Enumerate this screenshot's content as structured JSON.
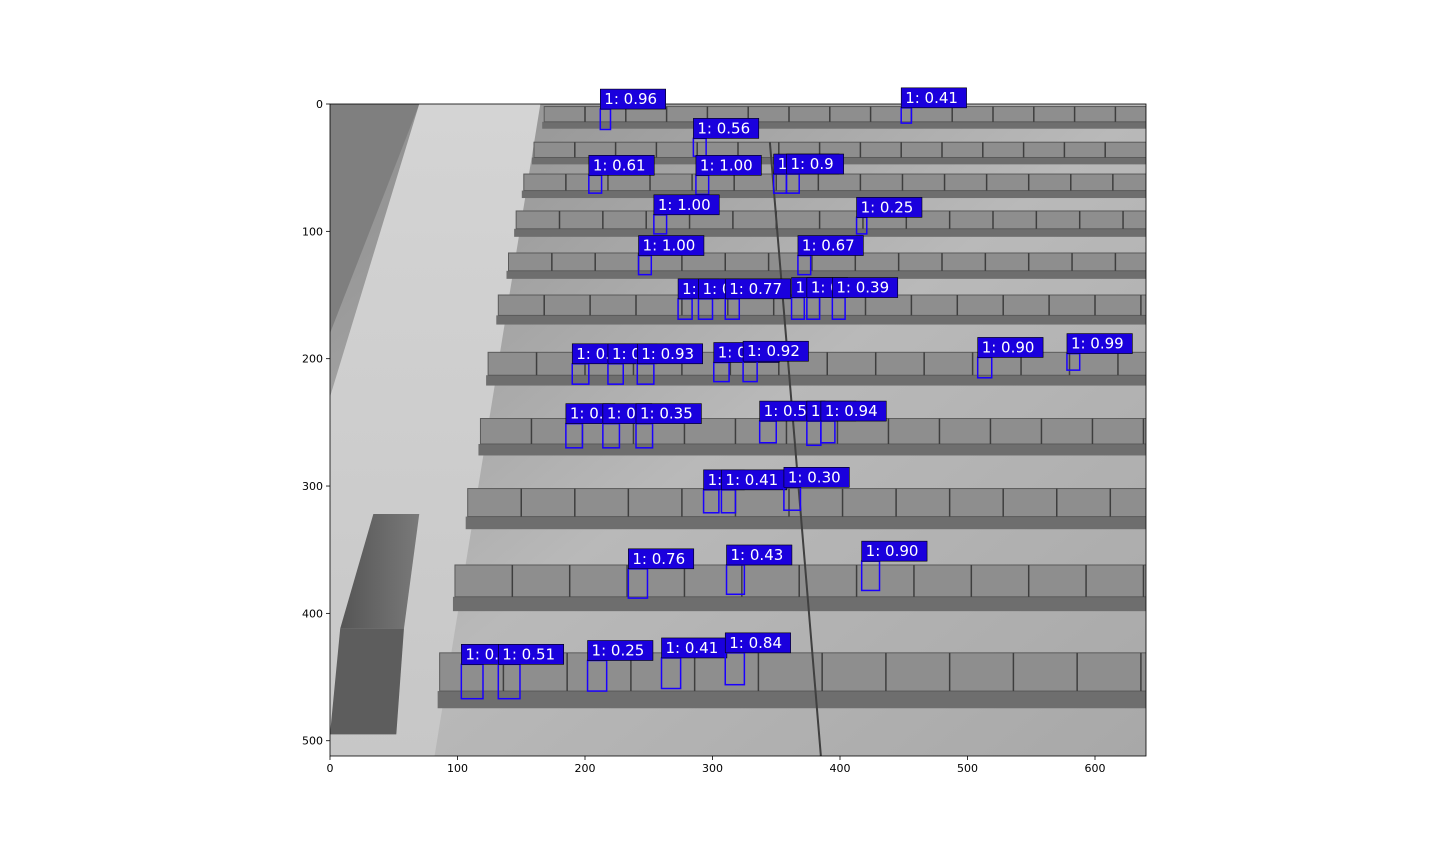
{
  "chart_data": {
    "type": "detection-overlay",
    "title": "",
    "xlabel": "",
    "ylabel": "",
    "xlim": [
      0,
      640
    ],
    "ylim": [
      512,
      0
    ],
    "xticks": [
      0,
      100,
      200,
      300,
      400,
      500,
      600
    ],
    "yticks": [
      0,
      100,
      200,
      300,
      400,
      500
    ],
    "xtick_labels": [
      "0",
      "100",
      "200",
      "300",
      "400",
      "500",
      "600"
    ],
    "ytick_labels": [
      "0",
      "100",
      "200",
      "300",
      "400",
      "500"
    ],
    "box_color": "#1a00ff",
    "label_bg": "#1a00dd",
    "background": "grayscale thermal aerial image of solar panel rows",
    "detections": [
      {
        "label": "1: 0.96",
        "x": 212,
        "y": 4,
        "w": 8,
        "h": 16
      },
      {
        "label": "1: 0.41",
        "x": 448,
        "y": 3,
        "w": 8,
        "h": 12
      },
      {
        "label": "1: 0.56",
        "x": 285,
        "y": 27,
        "w": 10,
        "h": 14
      },
      {
        "label": "1: 0.61",
        "x": 203,
        "y": 56,
        "w": 10,
        "h": 14
      },
      {
        "label": "1: 1.00",
        "x": 287,
        "y": 56,
        "w": 10,
        "h": 15
      },
      {
        "label": "1: 0.76",
        "x": 348,
        "y": 55,
        "w": 10,
        "h": 15
      },
      {
        "label": "1: 0.9",
        "x": 358,
        "y": 55,
        "w": 10,
        "h": 15
      },
      {
        "label": "1: 1.00",
        "x": 254,
        "y": 87,
        "w": 10,
        "h": 15
      },
      {
        "label": "1: 0.25",
        "x": 413,
        "y": 89,
        "w": 8,
        "h": 13
      },
      {
        "label": "1: 1.00",
        "x": 242,
        "y": 119,
        "w": 10,
        "h": 15
      },
      {
        "label": "1: 0.67",
        "x": 367,
        "y": 119,
        "w": 10,
        "h": 15
      },
      {
        "label": "1: 0",
        "x": 273,
        "y": 153,
        "w": 11,
        "h": 16
      },
      {
        "label": "1: 0",
        "x": 289,
        "y": 153,
        "w": 11,
        "h": 16
      },
      {
        "label": "1: 0.77",
        "x": 310,
        "y": 153,
        "w": 11,
        "h": 16
      },
      {
        "label": "1: 0",
        "x": 362,
        "y": 152,
        "w": 10,
        "h": 17
      },
      {
        "label": "1: 0",
        "x": 374,
        "y": 152,
        "w": 10,
        "h": 17
      },
      {
        "label": "1: 0.39",
        "x": 394,
        "y": 152,
        "w": 10,
        "h": 17
      },
      {
        "label": "1: 0.93",
        "x": 190,
        "y": 204,
        "w": 13,
        "h": 16
      },
      {
        "label": "1: 0.",
        "x": 218,
        "y": 204,
        "w": 12,
        "h": 16
      },
      {
        "label": "1: 0.93",
        "x": 241,
        "y": 204,
        "w": 13,
        "h": 16
      },
      {
        "label": "1: 0.26",
        "x": 301,
        "y": 203,
        "w": 12,
        "h": 15
      },
      {
        "label": "1: 0.92",
        "x": 324,
        "y": 202,
        "w": 11,
        "h": 16
      },
      {
        "label": "1: 0.90",
        "x": 508,
        "y": 199,
        "w": 11,
        "h": 16
      },
      {
        "label": "1: 0.99",
        "x": 578,
        "y": 196,
        "w": 10,
        "h": 13
      },
      {
        "label": "1: 0.",
        "x": 185,
        "y": 251,
        "w": 13,
        "h": 19
      },
      {
        "label": "1: 0.",
        "x": 214,
        "y": 251,
        "w": 13,
        "h": 19
      },
      {
        "label": "1: 0.35",
        "x": 240,
        "y": 251,
        "w": 13,
        "h": 19
      },
      {
        "label": "1: 0.54",
        "x": 337,
        "y": 249,
        "w": 13,
        "h": 17
      },
      {
        "label": "1: 0.",
        "x": 374,
        "y": 249,
        "w": 11,
        "h": 19
      },
      {
        "label": "1: 0.94",
        "x": 385,
        "y": 249,
        "w": 11,
        "h": 17
      },
      {
        "label": "1: 0",
        "x": 293,
        "y": 303,
        "w": 12,
        "h": 18
      },
      {
        "label": "1: 0.41",
        "x": 307,
        "y": 303,
        "w": 11,
        "h": 18
      },
      {
        "label": "1: 0.30",
        "x": 356,
        "y": 301,
        "w": 13,
        "h": 18
      },
      {
        "label": "1: 0.76",
        "x": 234,
        "y": 365,
        "w": 15,
        "h": 23
      },
      {
        "label": "1: 0.43",
        "x": 311,
        "y": 362,
        "w": 14,
        "h": 23
      },
      {
        "label": "1: 0.90",
        "x": 417,
        "y": 359,
        "w": 14,
        "h": 23
      },
      {
        "label": "1: 0.",
        "x": 103,
        "y": 440,
        "w": 17,
        "h": 27
      },
      {
        "label": "1: 0.51",
        "x": 132,
        "y": 440,
        "w": 17,
        "h": 27
      },
      {
        "label": "1: 0.25",
        "x": 202,
        "y": 437,
        "w": 15,
        "h": 24
      },
      {
        "label": "1: 0.41",
        "x": 260,
        "y": 435,
        "w": 15,
        "h": 24
      },
      {
        "label": "1: 0.84",
        "x": 310,
        "y": 431,
        "w": 15,
        "h": 25
      }
    ]
  }
}
